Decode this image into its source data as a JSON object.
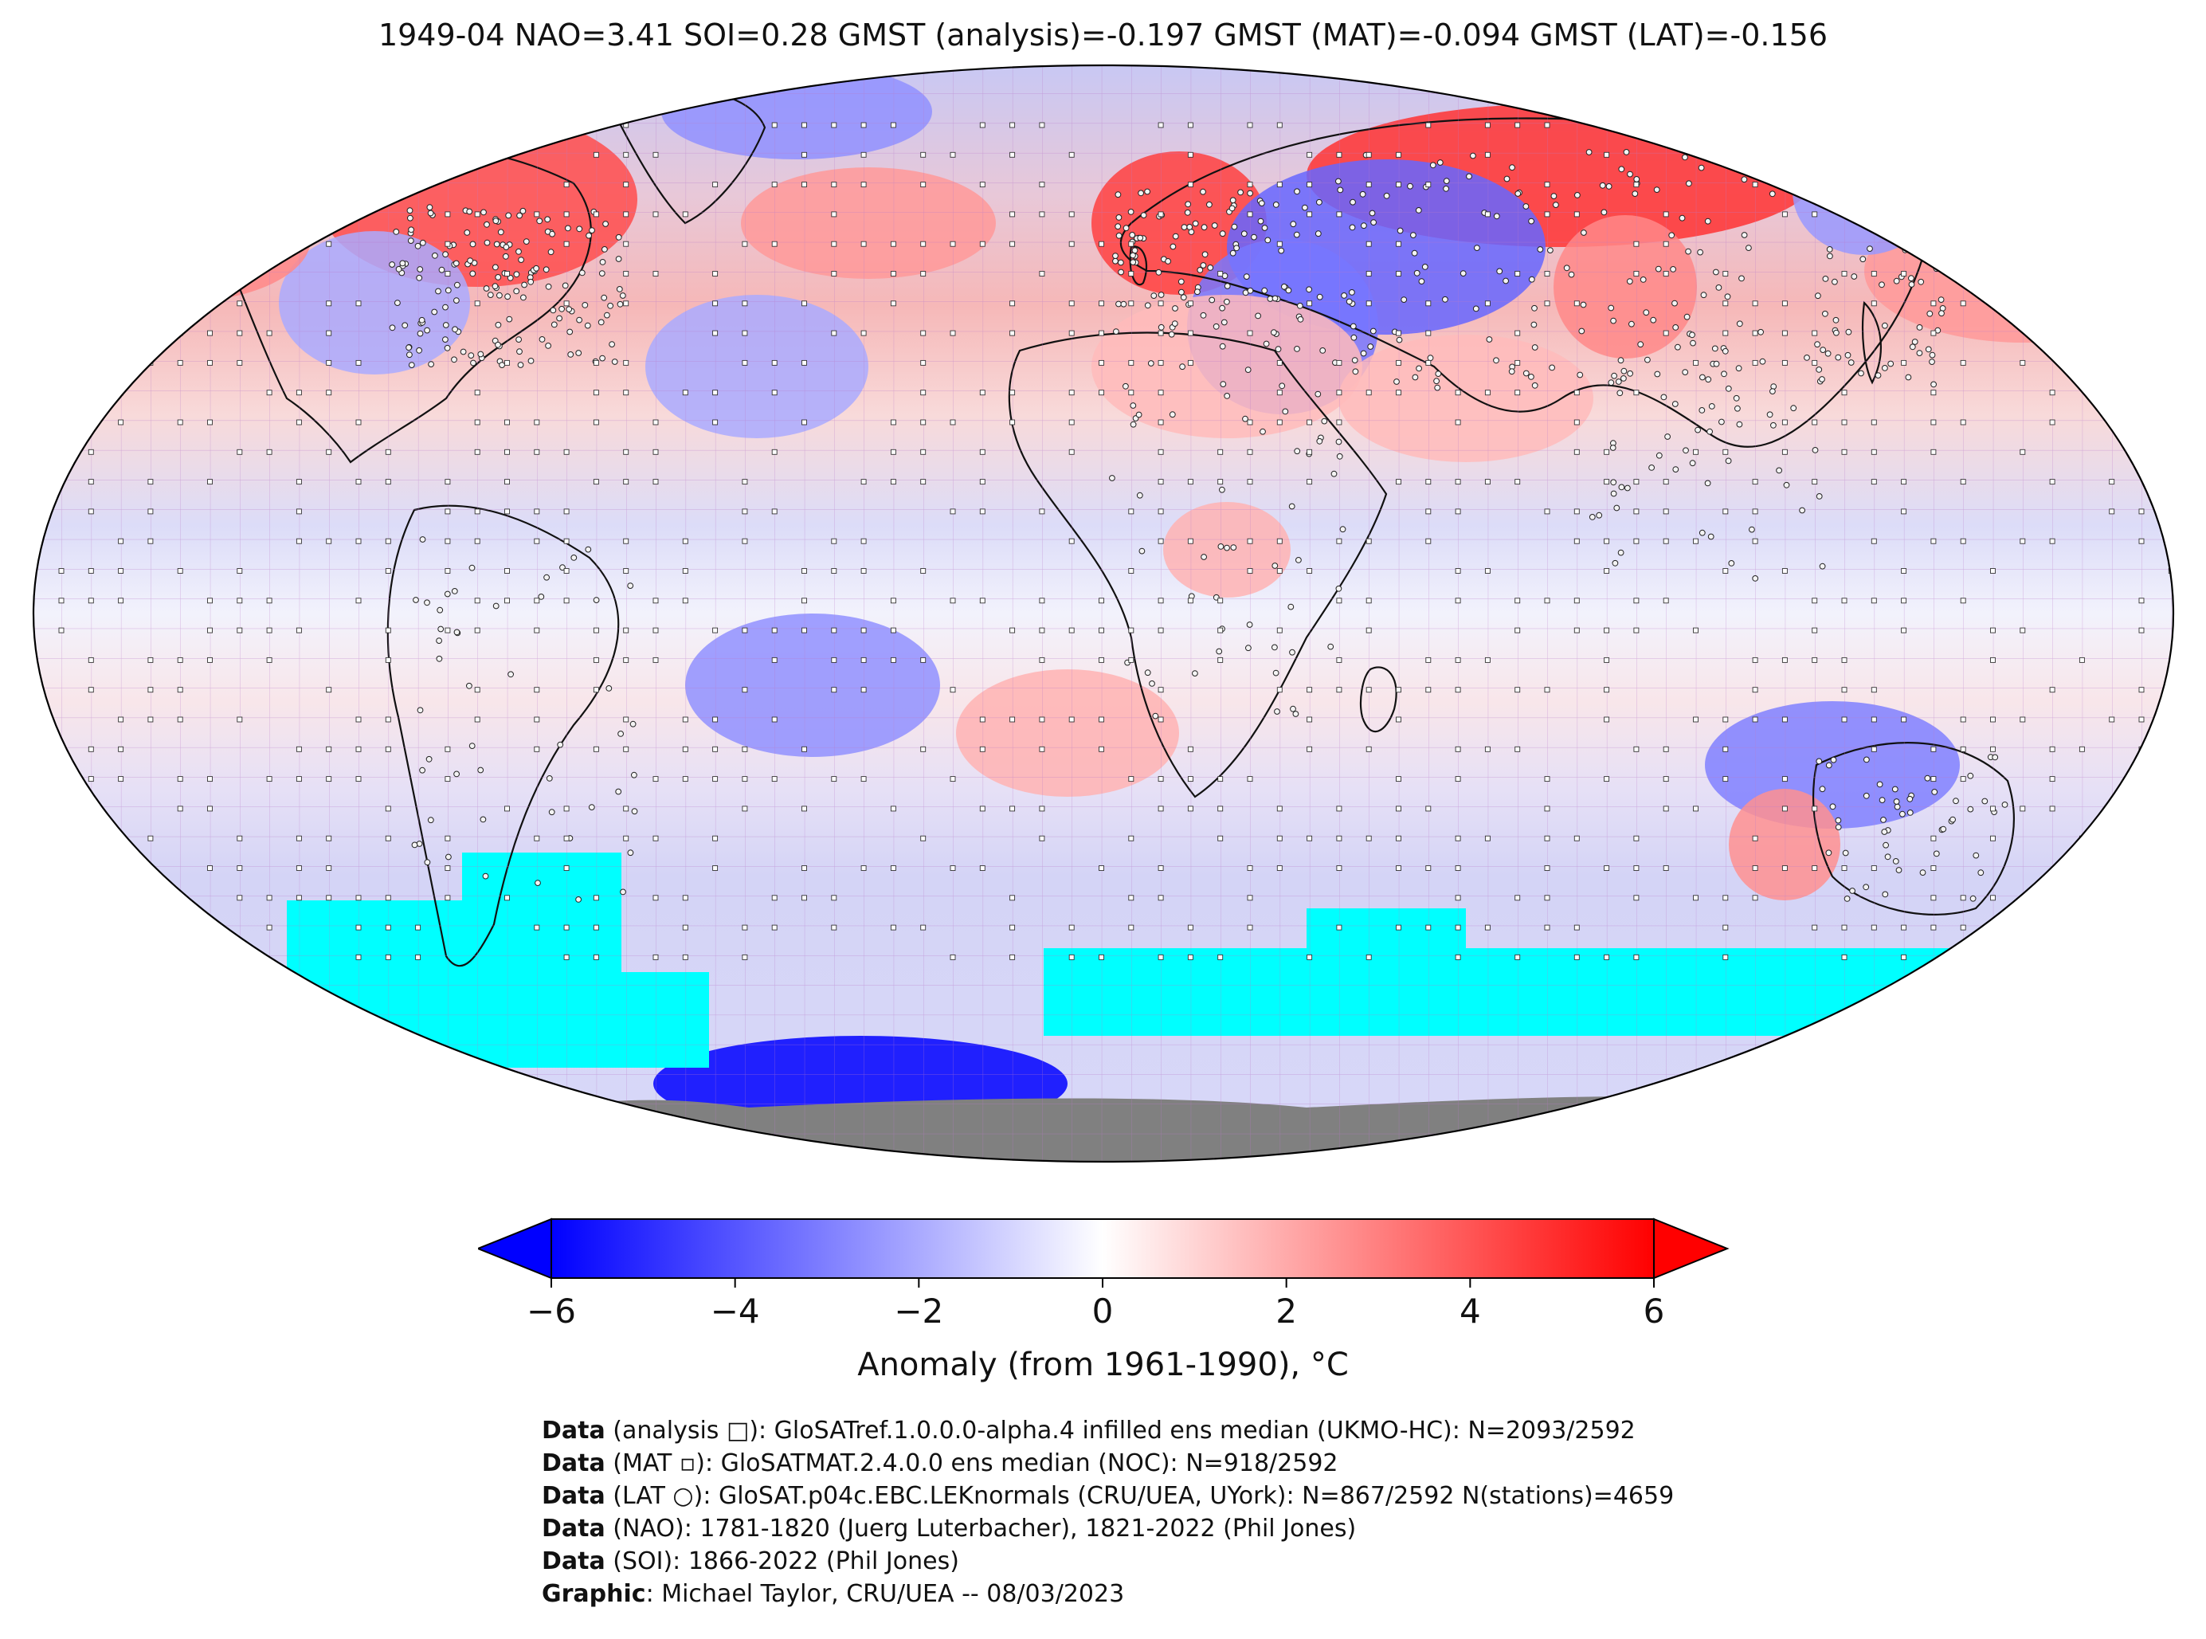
{
  "title": "1949-04 NAO=3.41 SOI=0.28 GMST (analysis)=-0.197 GMST (MAT)=-0.094 GMST (LAT)=-0.156",
  "colorbar": {
    "label": "Anomaly (from 1961-1990), °C",
    "ticks": [
      "−6",
      "−4",
      "−2",
      "0",
      "2",
      "4",
      "6"
    ],
    "range": [
      -6,
      6
    ],
    "low_color": "#0000ff",
    "mid_color": "#ffffff",
    "high_color": "#ff0000",
    "extend": "both"
  },
  "map": {
    "projection": "Robinson",
    "sea_ice_color": "#00ffff",
    "antarctica_color": "#808080",
    "grid_color": "#b060c0"
  },
  "credits": [
    {
      "bold": "Data",
      "text": " (analysis □): GloSATref.1.0.0.0-alpha.4 infilled ens median (UKMO-HC): N=2093/2592"
    },
    {
      "bold": "Data",
      "text": " (MAT ▫): GloSATMAT.2.4.0.0 ens median (NOC): N=918/2592"
    },
    {
      "bold": "Data",
      "text": " (LAT ○): GloSAT.p04c.EBC.LEKnormals (CRU/UEA, UYork): N=867/2592 N(stations)=4659"
    },
    {
      "bold": "Data",
      "text": " (NAO): 1781-1820 (Juerg Luterbacher), 1821-2022 (Phil Jones)"
    },
    {
      "bold": "Data",
      "text": " (SOI): 1866-2022 (Phil Jones)"
    },
    {
      "bold": "Graphic",
      "text": ": Michael Taylor, CRU/UEA -- 08/03/2023"
    }
  ]
}
